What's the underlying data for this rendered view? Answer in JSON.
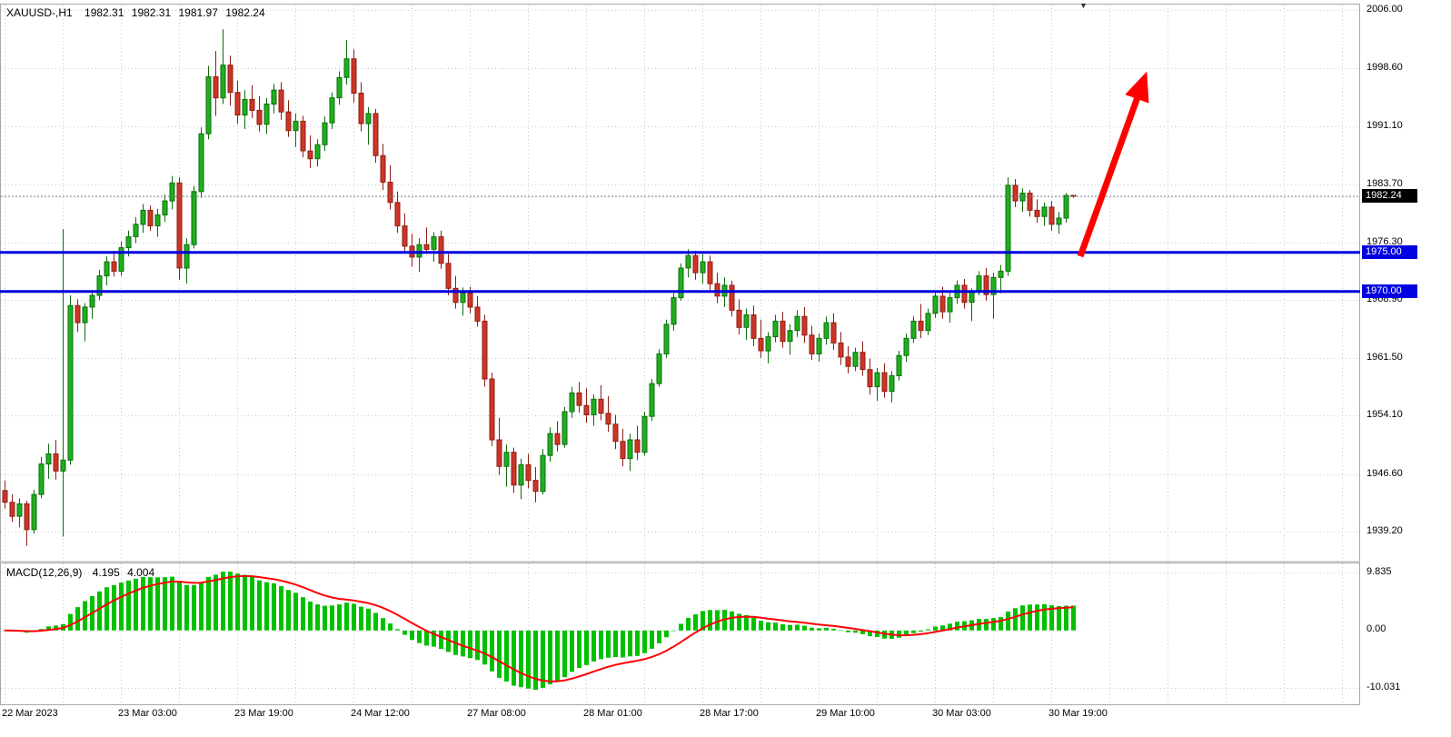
{
  "header": {
    "symbol_period": "XAUUSD-,H1",
    "open": "1982.31",
    "high": "1982.31",
    "low": "1981.97",
    "close": "1982.24"
  },
  "macd": {
    "label_name": "MACD(12,26,9)",
    "value": "4.195",
    "signal_value": "4.004",
    "scale_top": "9.835",
    "scale_zero": "0.00",
    "scale_bottom": "-10.031"
  },
  "bid": {
    "price": 1982.24,
    "label": "1982.24"
  },
  "levels": [
    {
      "price": 1975.0,
      "label": "1975.00"
    },
    {
      "price": 1970.0,
      "label": "1970.00"
    }
  ],
  "arrow": {
    "from_bar": 148,
    "from_price": 1974.5,
    "to_bar": 156.5,
    "to_price": 1996.5
  },
  "shift_marker_glyph": "▼",
  "price_scale": {
    "labels": [
      {
        "text": "2006.00",
        "value": 2006.0
      },
      {
        "text": "1998.60",
        "value": 1998.6
      },
      {
        "text": "1991.10",
        "value": 1991.1
      },
      {
        "text": "1983.70",
        "value": 1983.7
      },
      {
        "text": "1976.30",
        "value": 1976.3
      },
      {
        "text": "1968.90",
        "value": 1968.9
      },
      {
        "text": "1961.50",
        "value": 1961.5
      },
      {
        "text": "1954.10",
        "value": 1954.1
      },
      {
        "text": "1946.60",
        "value": 1946.6
      },
      {
        "text": "1939.20",
        "value": 1939.2
      }
    ]
  },
  "time_scale": {
    "labels": [
      {
        "text": "22 Mar 2023",
        "bar": 0
      },
      {
        "text": "23 Mar 03:00",
        "bar": 16
      },
      {
        "text": "23 Mar 19:00",
        "bar": 32
      },
      {
        "text": "24 Mar 12:00",
        "bar": 48
      },
      {
        "text": "27 Mar 08:00",
        "bar": 64
      },
      {
        "text": "28 Mar 01:00",
        "bar": 80
      },
      {
        "text": "28 Mar 17:00",
        "bar": 96
      },
      {
        "text": "29 Mar 10:00",
        "bar": 112
      },
      {
        "text": "30 Mar 03:00",
        "bar": 128
      },
      {
        "text": "30 Mar 19:00",
        "bar": 144
      }
    ]
  },
  "colors": {
    "candle_up": "#1fae1f",
    "candle_up_border": "#0c6e0c",
    "candle_down": "#cd3527",
    "candle_down_border": "#8d1f15",
    "grid": "#c9c9c9",
    "border": "#a8a8a8",
    "level_line": "#0000e0",
    "bid_line": "#707b88",
    "bid_tag_bg": "#000000",
    "macd_hist": "#00c000",
    "macd_signal": "#ff0000",
    "arrow": "#ff0000"
  },
  "chart_data": {
    "type": "candlestick",
    "symbol": "XAUUSD",
    "timeframe": "H1",
    "title": "XAUUSD-,H1 1982.31 1982.31 1981.97 1982.24",
    "ylim": [
      1935.4,
      2006.75
    ],
    "y_tick_labels": [
      "2006.00",
      "1998.60",
      "1991.10",
      "1983.70",
      "1976.30",
      "1968.90",
      "1961.50",
      "1954.10",
      "1946.60",
      "1939.20"
    ],
    "x_tick_labels": [
      "22 Mar 2023",
      "23 Mar 03:00",
      "23 Mar 19:00",
      "24 Mar 12:00",
      "27 Mar 08:00",
      "28 Mar 01:00",
      "28 Mar 17:00",
      "29 Mar 10:00",
      "30 Mar 03:00",
      "30 Mar 19:00"
    ],
    "support_resistance_levels": [
      1975.0,
      1970.0
    ],
    "last_price": 1982.24,
    "indicator": {
      "name": "MACD",
      "params": [
        12,
        26,
        9
      ],
      "current_macd": 4.195,
      "current_signal": 4.004,
      "scale_max": 9.835,
      "scale_min": -10.031
    },
    "annotation_arrow": {
      "from_bar": 148,
      "from_price": 1974.5,
      "to_bar": 156.5,
      "to_price": 1996.5
    },
    "candles": [
      [
        1944.5,
        1945.8,
        1942.2,
        1943.0
      ],
      [
        1943.0,
        1944.0,
        1940.5,
        1941.2
      ],
      [
        1941.2,
        1943.5,
        1939.8,
        1942.8
      ],
      [
        1942.8,
        1943.2,
        1937.4,
        1939.5
      ],
      [
        1939.5,
        1944.6,
        1939.0,
        1944.0
      ],
      [
        1944.0,
        1948.8,
        1943.5,
        1947.9
      ],
      [
        1947.9,
        1950.5,
        1946.0,
        1949.2
      ],
      [
        1949.2,
        1951.0,
        1945.9,
        1947.0
      ],
      [
        1947.0,
        1978.0,
        1938.6,
        1948.4
      ],
      [
        1948.4,
        1969.5,
        1947.8,
        1968.2
      ],
      [
        1968.2,
        1969.0,
        1964.8,
        1966.0
      ],
      [
        1966.0,
        1968.5,
        1963.6,
        1968.0
      ],
      [
        1968.0,
        1970.2,
        1966.5,
        1969.5
      ],
      [
        1969.5,
        1972.8,
        1968.9,
        1972.0
      ],
      [
        1972.0,
        1974.5,
        1970.8,
        1973.8
      ],
      [
        1973.8,
        1975.2,
        1971.9,
        1972.6
      ],
      [
        1972.6,
        1976.4,
        1972.0,
        1975.6
      ],
      [
        1975.6,
        1977.8,
        1974.5,
        1977.0
      ],
      [
        1977.0,
        1979.5,
        1976.2,
        1978.6
      ],
      [
        1978.6,
        1981.2,
        1977.5,
        1980.4
      ],
      [
        1980.4,
        1981.0,
        1977.8,
        1978.4
      ],
      [
        1978.4,
        1980.6,
        1977.0,
        1979.8
      ],
      [
        1979.8,
        1982.4,
        1978.9,
        1981.6
      ],
      [
        1981.6,
        1984.8,
        1980.5,
        1983.9
      ],
      [
        1983.9,
        1984.6,
        1971.5,
        1973.0
      ],
      [
        1973.0,
        1976.8,
        1971.0,
        1976.0
      ],
      [
        1976.0,
        1983.5,
        1975.5,
        1982.8
      ],
      [
        1982.8,
        1991.0,
        1982.0,
        1990.2
      ],
      [
        1990.2,
        1998.9,
        1989.5,
        1997.5
      ],
      [
        1997.5,
        2000.8,
        1992.5,
        1994.8
      ],
      [
        1994.8,
        2003.6,
        1994.0,
        1999.0
      ],
      [
        1999.0,
        2000.2,
        1993.8,
        1995.5
      ],
      [
        1995.5,
        1997.0,
        1991.5,
        1992.6
      ],
      [
        1992.6,
        1995.8,
        1990.8,
        1994.6
      ],
      [
        1994.6,
        1996.4,
        1992.2,
        1993.2
      ],
      [
        1993.2,
        1995.0,
        1990.5,
        1991.4
      ],
      [
        1991.4,
        1994.8,
        1990.2,
        1994.0
      ],
      [
        1994.0,
        1996.6,
        1992.8,
        1995.8
      ],
      [
        1995.8,
        1996.8,
        1992.0,
        1993.0
      ],
      [
        1993.0,
        1994.5,
        1989.8,
        1990.6
      ],
      [
        1990.6,
        1992.8,
        1988.5,
        1991.8
      ],
      [
        1991.8,
        1992.5,
        1987.2,
        1988.0
      ],
      [
        1988.0,
        1990.0,
        1985.8,
        1987.0
      ],
      [
        1987.0,
        1989.5,
        1986.0,
        1988.8
      ],
      [
        1988.8,
        1992.4,
        1988.0,
        1991.6
      ],
      [
        1991.6,
        1995.5,
        1990.8,
        1994.8
      ],
      [
        1994.8,
        1998.2,
        1993.9,
        1997.4
      ],
      [
        1997.4,
        2002.2,
        1996.5,
        1999.8
      ],
      [
        1999.8,
        2001.0,
        1994.2,
        1995.4
      ],
      [
        1995.4,
        1996.8,
        1990.5,
        1991.5
      ],
      [
        1991.5,
        1993.6,
        1988.8,
        1992.8
      ],
      [
        1992.8,
        1993.4,
        1986.5,
        1987.4
      ],
      [
        1987.4,
        1988.9,
        1983.0,
        1984.0
      ],
      [
        1984.0,
        1986.2,
        1980.5,
        1981.4
      ],
      [
        1981.4,
        1982.8,
        1977.5,
        1978.4
      ],
      [
        1978.4,
        1980.0,
        1974.9,
        1975.8
      ],
      [
        1975.8,
        1977.4,
        1973.2,
        1974.4
      ],
      [
        1974.4,
        1976.8,
        1972.5,
        1976.0
      ],
      [
        1976.0,
        1978.2,
        1974.8,
        1975.4
      ],
      [
        1975.4,
        1977.6,
        1973.8,
        1977.0
      ],
      [
        1977.0,
        1977.8,
        1972.9,
        1973.6
      ],
      [
        1973.6,
        1974.8,
        1969.5,
        1970.4
      ],
      [
        1970.4,
        1972.0,
        1967.8,
        1968.6
      ],
      [
        1968.6,
        1970.5,
        1966.9,
        1969.8
      ],
      [
        1969.8,
        1970.6,
        1967.2,
        1968.0
      ],
      [
        1968.0,
        1969.4,
        1965.5,
        1966.2
      ],
      [
        1966.2,
        1967.0,
        1957.8,
        1958.8
      ],
      [
        1958.8,
        1959.6,
        1950.2,
        1951.0
      ],
      [
        1951.0,
        1953.8,
        1946.5,
        1947.6
      ],
      [
        1947.6,
        1950.4,
        1945.0,
        1949.4
      ],
      [
        1949.4,
        1950.0,
        1944.2,
        1945.2
      ],
      [
        1945.2,
        1948.6,
        1943.4,
        1947.8
      ],
      [
        1947.8,
        1949.2,
        1944.8,
        1945.8
      ],
      [
        1945.8,
        1947.5,
        1943.0,
        1944.4
      ],
      [
        1944.4,
        1949.8,
        1944.0,
        1949.0
      ],
      [
        1949.0,
        1952.6,
        1948.2,
        1951.8
      ],
      [
        1951.8,
        1953.4,
        1949.5,
        1950.4
      ],
      [
        1950.4,
        1955.2,
        1950.0,
        1954.6
      ],
      [
        1954.6,
        1957.8,
        1953.8,
        1957.0
      ],
      [
        1957.0,
        1958.4,
        1954.5,
        1955.4
      ],
      [
        1955.4,
        1957.6,
        1953.2,
        1954.2
      ],
      [
        1954.2,
        1956.8,
        1952.8,
        1956.2
      ],
      [
        1956.2,
        1958.0,
        1953.5,
        1954.4
      ],
      [
        1954.4,
        1956.6,
        1952.0,
        1953.0
      ],
      [
        1953.0,
        1954.2,
        1949.8,
        1950.8
      ],
      [
        1950.8,
        1952.4,
        1947.6,
        1948.6
      ],
      [
        1948.6,
        1951.8,
        1947.0,
        1951.0
      ],
      [
        1951.0,
        1952.8,
        1948.4,
        1949.4
      ],
      [
        1949.4,
        1954.6,
        1949.0,
        1954.0
      ],
      [
        1954.0,
        1958.8,
        1953.4,
        1958.2
      ],
      [
        1958.2,
        1962.6,
        1957.8,
        1962.0
      ],
      [
        1962.0,
        1966.4,
        1961.5,
        1965.8
      ],
      [
        1965.8,
        1969.8,
        1965.0,
        1969.2
      ],
      [
        1969.2,
        1973.6,
        1968.8,
        1973.0
      ],
      [
        1973.0,
        1975.4,
        1971.8,
        1974.6
      ],
      [
        1974.6,
        1975.2,
        1971.5,
        1972.4
      ],
      [
        1972.4,
        1974.8,
        1971.0,
        1973.8
      ],
      [
        1973.8,
        1974.6,
        1970.2,
        1971.0
      ],
      [
        1971.0,
        1972.4,
        1968.5,
        1969.4
      ],
      [
        1969.4,
        1971.8,
        1968.0,
        1970.8
      ],
      [
        1970.8,
        1971.4,
        1966.8,
        1967.6
      ],
      [
        1967.6,
        1969.0,
        1964.5,
        1965.4
      ],
      [
        1965.4,
        1967.8,
        1963.8,
        1967.0
      ],
      [
        1967.0,
        1968.2,
        1963.0,
        1964.0
      ],
      [
        1964.0,
        1966.4,
        1961.5,
        1962.4
      ],
      [
        1962.4,
        1964.8,
        1960.8,
        1964.2
      ],
      [
        1964.2,
        1967.0,
        1963.5,
        1966.2
      ],
      [
        1966.2,
        1967.4,
        1962.8,
        1963.6
      ],
      [
        1963.6,
        1965.8,
        1961.9,
        1965.0
      ],
      [
        1965.0,
        1967.6,
        1964.2,
        1966.8
      ],
      [
        1966.8,
        1968.0,
        1963.4,
        1964.4
      ],
      [
        1964.4,
        1965.6,
        1961.2,
        1962.0
      ],
      [
        1962.0,
        1964.6,
        1961.0,
        1964.0
      ],
      [
        1964.0,
        1966.8,
        1963.2,
        1966.0
      ],
      [
        1966.0,
        1967.2,
        1962.5,
        1963.4
      ],
      [
        1963.4,
        1964.8,
        1960.6,
        1961.6
      ],
      [
        1961.6,
        1963.0,
        1959.5,
        1960.4
      ],
      [
        1960.4,
        1962.8,
        1959.8,
        1962.2
      ],
      [
        1962.2,
        1963.6,
        1959.2,
        1960.0
      ],
      [
        1960.0,
        1961.4,
        1956.8,
        1957.8
      ],
      [
        1957.8,
        1960.2,
        1956.0,
        1959.6
      ],
      [
        1959.6,
        1960.8,
        1956.4,
        1957.2
      ],
      [
        1957.2,
        1959.8,
        1955.8,
        1959.2
      ],
      [
        1959.2,
        1962.4,
        1958.6,
        1961.8
      ],
      [
        1961.8,
        1964.6,
        1961.0,
        1964.0
      ],
      [
        1964.0,
        1966.8,
        1963.4,
        1966.2
      ],
      [
        1966.2,
        1968.4,
        1964.0,
        1965.0
      ],
      [
        1965.0,
        1967.8,
        1964.4,
        1967.2
      ],
      [
        1967.2,
        1970.0,
        1966.6,
        1969.4
      ],
      [
        1969.4,
        1970.6,
        1966.5,
        1967.4
      ],
      [
        1967.4,
        1969.8,
        1966.0,
        1969.2
      ],
      [
        1969.2,
        1971.4,
        1968.4,
        1970.8
      ],
      [
        1970.8,
        1971.6,
        1967.8,
        1968.6
      ],
      [
        1968.6,
        1970.4,
        1966.2,
        1970.0
      ],
      [
        1970.0,
        1972.6,
        1969.5,
        1972.0
      ],
      [
        1972.0,
        1973.0,
        1968.8,
        1969.6
      ],
      [
        1969.6,
        1972.4,
        1966.5,
        1971.8
      ],
      [
        1971.8,
        1973.4,
        1969.8,
        1972.6
      ],
      [
        1972.6,
        1984.6,
        1972.0,
        1983.6
      ],
      [
        1983.6,
        1984.4,
        1980.8,
        1981.6
      ],
      [
        1981.6,
        1983.2,
        1980.2,
        1982.6
      ],
      [
        1982.6,
        1983.0,
        1979.6,
        1980.4
      ],
      [
        1980.4,
        1981.8,
        1978.8,
        1979.6
      ],
      [
        1979.6,
        1981.4,
        1978.4,
        1980.8
      ],
      [
        1980.8,
        1981.6,
        1977.8,
        1978.6
      ],
      [
        1978.6,
        1980.2,
        1977.4,
        1979.4
      ],
      [
        1979.4,
        1982.6,
        1978.8,
        1982.3
      ],
      [
        1982.31,
        1982.31,
        1981.97,
        1982.24
      ]
    ]
  }
}
